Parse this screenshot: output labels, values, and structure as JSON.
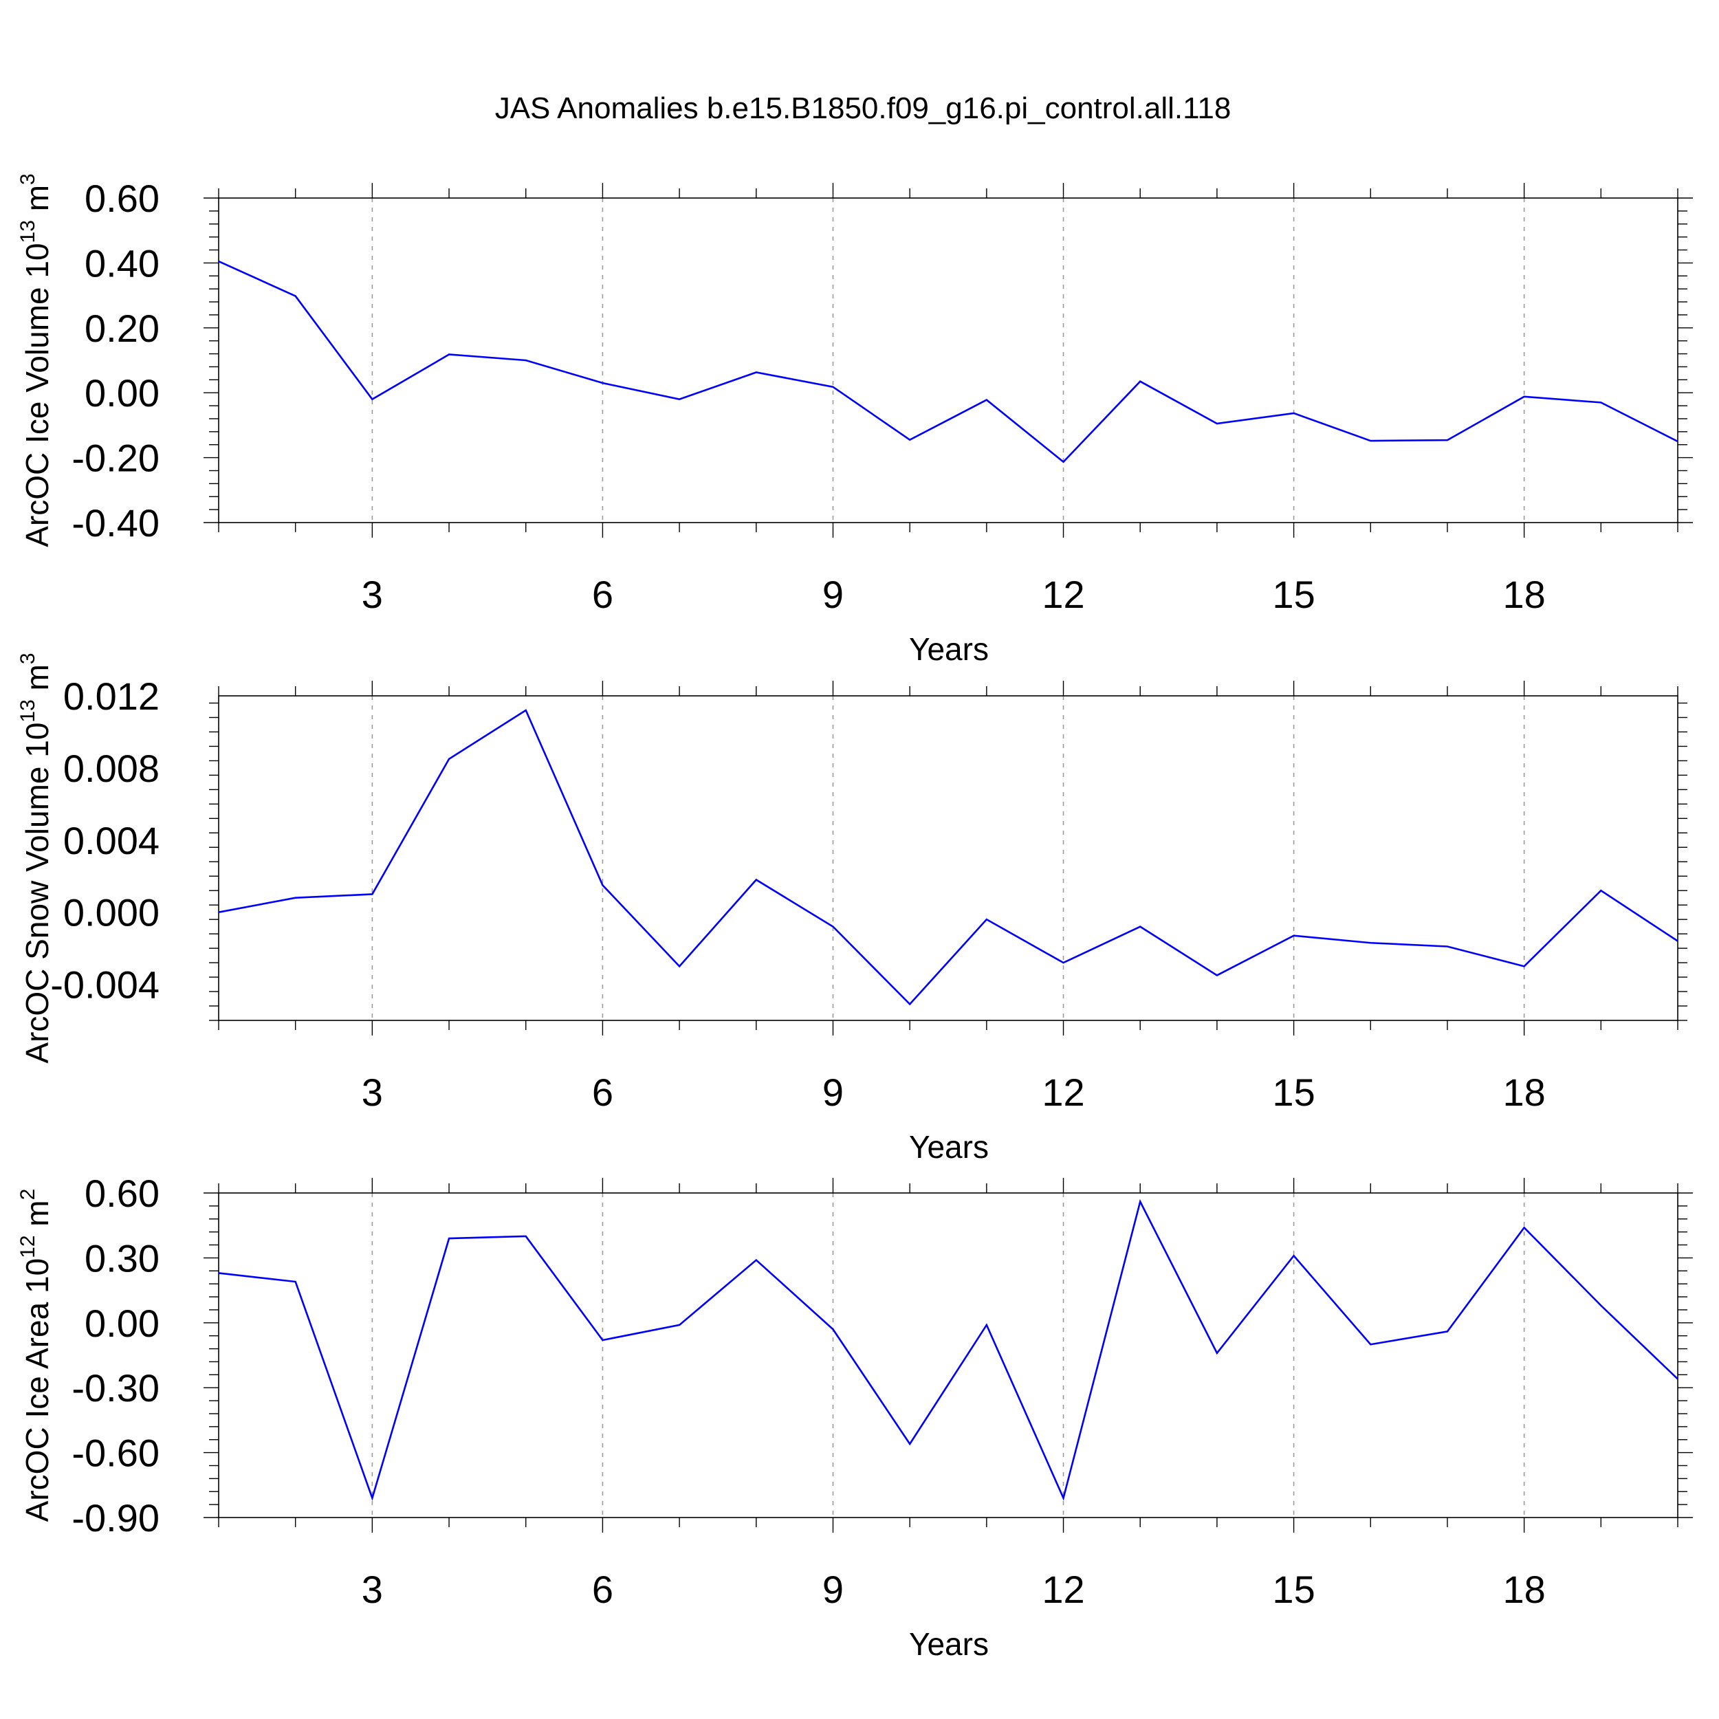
{
  "title": "JAS Anomalies b.e15.B1850.f09_g16.pi_control.all.118",
  "colors": {
    "line": "#0000ff",
    "frame": "#000000",
    "grid": "#9a9a9a"
  },
  "chart_data": [
    {
      "type": "line",
      "ylabel_main": "ArcOC Ice Volume 10",
      "ylabel_sup": "13",
      "ylabel_unit": " m",
      "ylabel_unit_sup": "3",
      "xlabel": "Years",
      "xlim": [
        1,
        20
      ],
      "ylim": [
        -0.4,
        0.6
      ],
      "yticks": [
        0.6,
        0.4,
        0.2,
        0.0,
        -0.2,
        -0.4
      ],
      "ytick_labels": [
        "0.60",
        "0.40",
        "0.20",
        "0.00",
        "-0.20",
        "-0.40"
      ],
      "xticks": [
        3,
        6,
        9,
        12,
        15,
        18
      ],
      "xtick_labels": [
        "3",
        "6",
        "9",
        "12",
        "15",
        "18"
      ],
      "grid": "vertical dashed at x ticks",
      "x": [
        1,
        2,
        3,
        4,
        5,
        6,
        7,
        8,
        9,
        10,
        11,
        12,
        13,
        14,
        15,
        16,
        17,
        18,
        19,
        20
      ],
      "values": [
        0.405,
        0.298,
        -0.02,
        0.118,
        0.1,
        0.03,
        -0.02,
        0.063,
        0.018,
        -0.145,
        -0.022,
        -0.213,
        0.035,
        -0.095,
        -0.063,
        -0.148,
        -0.146,
        -0.012,
        -0.03,
        -0.15
      ]
    },
    {
      "type": "line",
      "ylabel_main": "ArcOC Snow Volume 10",
      "ylabel_sup": "13",
      "ylabel_unit": " m",
      "ylabel_unit_sup": "3",
      "xlabel": "Years",
      "xlim": [
        1,
        20
      ],
      "ylim": [
        -0.006,
        0.012
      ],
      "yticks": [
        0.012,
        0.008,
        0.004,
        0.0,
        -0.004
      ],
      "ytick_labels": [
        "0.012",
        "0.008",
        "0.004",
        "0.000",
        "-0.004"
      ],
      "xticks": [
        3,
        6,
        9,
        12,
        15,
        18
      ],
      "xtick_labels": [
        "3",
        "6",
        "9",
        "12",
        "15",
        "18"
      ],
      "grid": "vertical dashed at x ticks",
      "x": [
        1,
        2,
        3,
        4,
        5,
        6,
        7,
        8,
        9,
        10,
        11,
        12,
        13,
        14,
        15,
        16,
        17,
        18,
        19,
        20
      ],
      "values": [
        0.0,
        0.0008,
        0.001,
        0.0085,
        0.0112,
        0.0015,
        -0.003,
        0.0018,
        -0.0008,
        -0.0051,
        -0.0004,
        -0.0028,
        -0.0008,
        -0.0035,
        -0.0013,
        -0.0017,
        -0.0019,
        -0.003,
        0.0012,
        -0.0016
      ]
    },
    {
      "type": "line",
      "ylabel_main": "ArcOC Ice Area 10",
      "ylabel_sup": "12",
      "ylabel_unit": " m",
      "ylabel_unit_sup": "2",
      "xlabel": "Years",
      "xlim": [
        1,
        20
      ],
      "ylim": [
        -0.9,
        0.6
      ],
      "yticks": [
        0.6,
        0.3,
        0.0,
        -0.3,
        -0.6,
        -0.9
      ],
      "ytick_labels": [
        "0.60",
        "0.30",
        "0.00",
        "-0.30",
        "-0.60",
        "-0.90"
      ],
      "xticks": [
        3,
        6,
        9,
        12,
        15,
        18
      ],
      "xtick_labels": [
        "3",
        "6",
        "9",
        "12",
        "15",
        "18"
      ],
      "grid": "vertical dashed at x ticks",
      "x": [
        1,
        2,
        3,
        4,
        5,
        6,
        7,
        8,
        9,
        10,
        11,
        12,
        13,
        14,
        15,
        16,
        17,
        18,
        19,
        20
      ],
      "values": [
        0.23,
        0.19,
        -0.81,
        0.39,
        0.4,
        -0.08,
        -0.01,
        0.29,
        -0.03,
        -0.56,
        -0.01,
        -0.81,
        0.56,
        -0.14,
        0.31,
        -0.1,
        -0.04,
        0.44,
        0.08,
        -0.26
      ]
    }
  ]
}
